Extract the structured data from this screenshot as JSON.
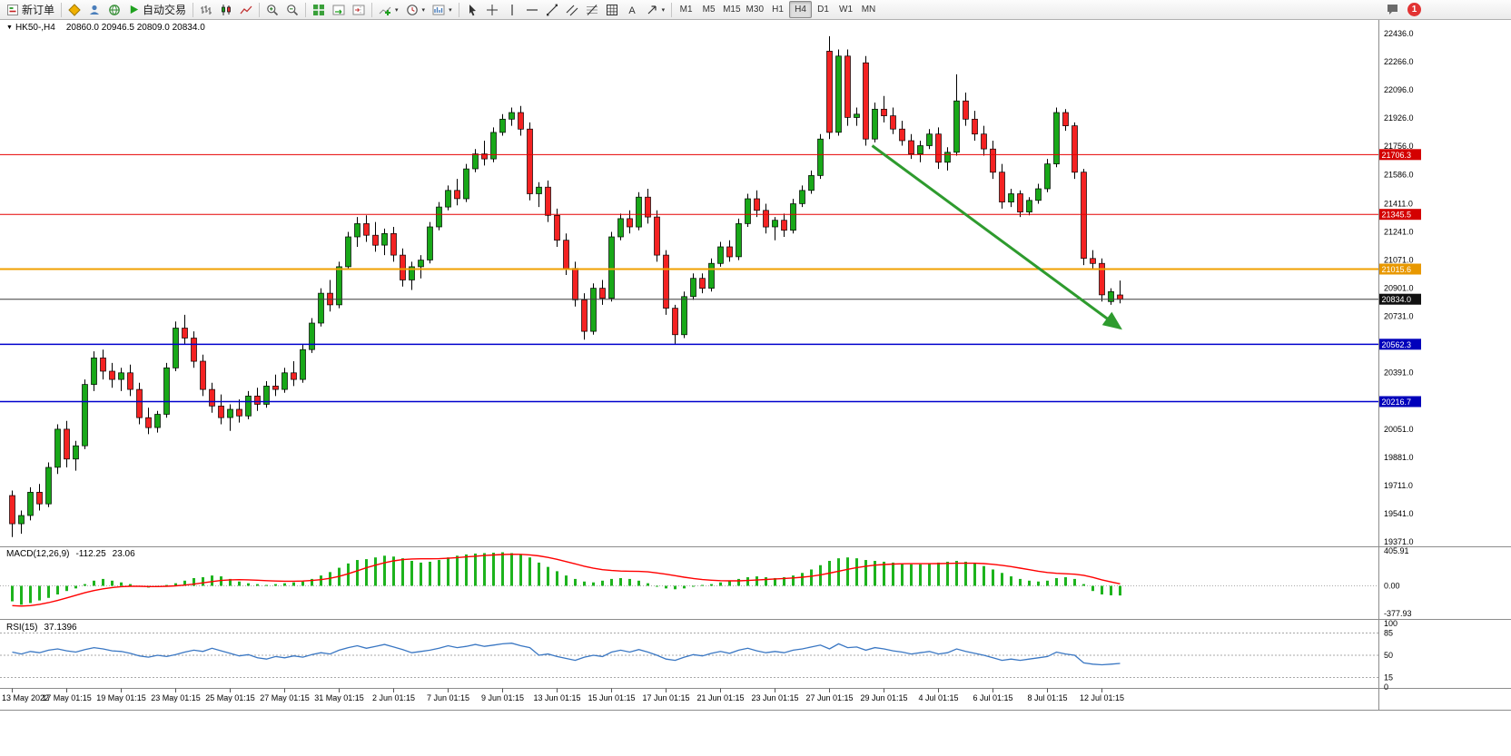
{
  "toolbar": {
    "new_order_label": "新订单",
    "autotrading_label": "自动交易",
    "timeframes": [
      "M1",
      "M5",
      "M15",
      "M30",
      "H1",
      "H4",
      "D1",
      "W1",
      "MN"
    ],
    "active_timeframe": "H4",
    "notification_count": "1"
  },
  "chart": {
    "symbol_period": "HK50-,H4",
    "ohlc_text": "20860.0 20946.5 20809.0 20834.0"
  },
  "chart_data": {
    "type": "candlestick",
    "symbol": "HK50",
    "period": "H4",
    "x_labels": [
      "13 May 2022",
      "17 May 01:15",
      "19 May 01:15",
      "23 May 01:15",
      "25 May 01:15",
      "27 May 01:15",
      "31 May 01:15",
      "2 Jun 01:15",
      "7 Jun 01:15",
      "9 Jun 01:15",
      "13 Jun 01:15",
      "15 Jun 01:15",
      "17 Jun 01:15",
      "21 Jun 01:15",
      "23 Jun 01:15",
      "27 Jun 01:15",
      "29 Jun 01:15",
      "4 Jul 01:15",
      "6 Jul 01:15",
      "8 Jul 01:15",
      "12 Jul 01:15"
    ],
    "y_axis_labels": [
      "22436.0",
      "22266.0",
      "22096.0",
      "21926.0",
      "21756.0",
      "21586.0",
      "21411.0",
      "21241.0",
      "21071.0",
      "20901.0",
      "20731.0",
      "20561.0",
      "20391.0",
      "20221.0",
      "20051.0",
      "19881.0",
      "19711.0",
      "19541.0",
      "19371.0"
    ],
    "candles": [
      [
        19650,
        19680,
        19400,
        19480
      ],
      [
        19480,
        19560,
        19420,
        19530
      ],
      [
        19530,
        19700,
        19500,
        19670
      ],
      [
        19670,
        19720,
        19560,
        19600
      ],
      [
        19600,
        19850,
        19580,
        19820
      ],
      [
        19820,
        20080,
        19780,
        20050
      ],
      [
        20050,
        20100,
        19820,
        19870
      ],
      [
        19870,
        19980,
        19800,
        19950
      ],
      [
        19950,
        20350,
        19930,
        20320
      ],
      [
        20320,
        20520,
        20280,
        20480
      ],
      [
        20480,
        20530,
        20350,
        20400
      ],
      [
        20400,
        20450,
        20300,
        20350
      ],
      [
        20350,
        20420,
        20280,
        20390
      ],
      [
        20390,
        20440,
        20250,
        20290
      ],
      [
        20290,
        20330,
        20080,
        20120
      ],
      [
        20120,
        20180,
        20020,
        20060
      ],
      [
        20060,
        20160,
        20030,
        20140
      ],
      [
        20140,
        20450,
        20120,
        20420
      ],
      [
        20420,
        20700,
        20400,
        20660
      ],
      [
        20660,
        20740,
        20560,
        20600
      ],
      [
        20600,
        20640,
        20420,
        20460
      ],
      [
        20460,
        20500,
        20250,
        20290
      ],
      [
        20290,
        20330,
        20150,
        20190
      ],
      [
        20190,
        20260,
        20080,
        20120
      ],
      [
        20120,
        20200,
        20040,
        20170
      ],
      [
        20170,
        20230,
        20090,
        20130
      ],
      [
        20130,
        20280,
        20110,
        20250
      ],
      [
        20250,
        20300,
        20160,
        20200
      ],
      [
        20200,
        20340,
        20180,
        20310
      ],
      [
        20310,
        20380,
        20250,
        20290
      ],
      [
        20290,
        20420,
        20270,
        20390
      ],
      [
        20390,
        20460,
        20310,
        20350
      ],
      [
        20350,
        20560,
        20330,
        20530
      ],
      [
        20530,
        20720,
        20510,
        20690
      ],
      [
        20690,
        20900,
        20670,
        20870
      ],
      [
        20870,
        20950,
        20760,
        20800
      ],
      [
        20800,
        21060,
        20780,
        21030
      ],
      [
        21030,
        21240,
        21010,
        21210
      ],
      [
        21210,
        21330,
        21150,
        21290
      ],
      [
        21290,
        21340,
        21180,
        21220
      ],
      [
        21220,
        21300,
        21120,
        21160
      ],
      [
        21160,
        21260,
        21100,
        21230
      ],
      [
        21230,
        21270,
        21060,
        21100
      ],
      [
        21100,
        21140,
        20910,
        20950
      ],
      [
        20950,
        21060,
        20890,
        21030
      ],
      [
        21030,
        21100,
        20960,
        21070
      ],
      [
        21070,
        21300,
        21050,
        21270
      ],
      [
        21270,
        21420,
        21250,
        21390
      ],
      [
        21390,
        21520,
        21370,
        21490
      ],
      [
        21490,
        21560,
        21400,
        21440
      ],
      [
        21440,
        21650,
        21420,
        21620
      ],
      [
        21620,
        21740,
        21600,
        21710
      ],
      [
        21710,
        21790,
        21640,
        21680
      ],
      [
        21680,
        21870,
        21660,
        21840
      ],
      [
        21840,
        21950,
        21820,
        21920
      ],
      [
        21920,
        21990,
        21880,
        21960
      ],
      [
        21960,
        22000,
        21820,
        21860
      ],
      [
        21860,
        21900,
        21430,
        21470
      ],
      [
        21470,
        21540,
        21390,
        21510
      ],
      [
        21510,
        21550,
        21300,
        21340
      ],
      [
        21340,
        21380,
        21150,
        21190
      ],
      [
        21190,
        21230,
        20980,
        21020
      ],
      [
        21020,
        21060,
        20790,
        20830
      ],
      [
        20830,
        20870,
        20590,
        20640
      ],
      [
        20640,
        20930,
        20620,
        20900
      ],
      [
        20900,
        20950,
        20800,
        20840
      ],
      [
        20840,
        21240,
        20820,
        21210
      ],
      [
        21210,
        21350,
        21190,
        21320
      ],
      [
        21320,
        21370,
        21230,
        21270
      ],
      [
        21270,
        21480,
        21250,
        21450
      ],
      [
        21450,
        21500,
        21290,
        21330
      ],
      [
        21330,
        21370,
        21060,
        21100
      ],
      [
        21100,
        21130,
        20740,
        20780
      ],
      [
        20780,
        20800,
        20565,
        20620
      ],
      [
        20620,
        20880,
        20600,
        20850
      ],
      [
        20850,
        20990,
        20830,
        20960
      ],
      [
        20960,
        20990,
        20870,
        20900
      ],
      [
        20900,
        21080,
        20880,
        21050
      ],
      [
        21050,
        21180,
        21030,
        21150
      ],
      [
        21150,
        21190,
        21060,
        21090
      ],
      [
        21090,
        21320,
        21070,
        21290
      ],
      [
        21290,
        21470,
        21270,
        21440
      ],
      [
        21440,
        21490,
        21330,
        21370
      ],
      [
        21370,
        21410,
        21230,
        21270
      ],
      [
        21270,
        21330,
        21190,
        21310
      ],
      [
        21310,
        21350,
        21210,
        21250
      ],
      [
        21250,
        21440,
        21230,
        21410
      ],
      [
        21410,
        21520,
        21390,
        21490
      ],
      [
        21490,
        21610,
        21470,
        21580
      ],
      [
        21580,
        21830,
        21560,
        21800
      ],
      [
        22330,
        22420,
        21800,
        21840
      ],
      [
        21840,
        22340,
        21820,
        22300
      ],
      [
        22300,
        22340,
        21880,
        21930
      ],
      [
        21930,
        21990,
        21880,
        21950
      ],
      [
        22260,
        22300,
        21760,
        21800
      ],
      [
        21800,
        22020,
        21780,
        21980
      ],
      [
        21980,
        22060,
        21900,
        21940
      ],
      [
        21940,
        21990,
        21830,
        21860
      ],
      [
        21860,
        21910,
        21760,
        21790
      ],
      [
        21790,
        21830,
        21680,
        21710
      ],
      [
        21710,
        21790,
        21660,
        21760
      ],
      [
        21760,
        21860,
        21740,
        21830
      ],
      [
        21830,
        21870,
        21620,
        21660
      ],
      [
        21660,
        21750,
        21610,
        21720
      ],
      [
        21720,
        22190,
        21700,
        22030
      ],
      [
        22030,
        22080,
        21880,
        21920
      ],
      [
        21920,
        21970,
        21790,
        21830
      ],
      [
        21830,
        21880,
        21700,
        21740
      ],
      [
        21740,
        21790,
        21560,
        21600
      ],
      [
        21600,
        21650,
        21380,
        21420
      ],
      [
        21420,
        21500,
        21390,
        21470
      ],
      [
        21470,
        21490,
        21330,
        21360
      ],
      [
        21360,
        21450,
        21340,
        21430
      ],
      [
        21430,
        21530,
        21410,
        21500
      ],
      [
        21500,
        21680,
        21480,
        21650
      ],
      [
        21650,
        21990,
        21630,
        21960
      ],
      [
        21960,
        21980,
        21850,
        21880
      ],
      [
        21880,
        21900,
        21560,
        21600
      ],
      [
        21600,
        21620,
        21040,
        21080
      ],
      [
        21080,
        21130,
        21010,
        21050
      ],
      [
        21050,
        21080,
        20820,
        20860
      ],
      [
        20820,
        20900,
        20800,
        20880
      ],
      [
        20860,
        20946.5,
        20809.0,
        20834.0
      ]
    ],
    "horizontal_lines": [
      {
        "price": 21706.3,
        "label": "21706.3",
        "color": "#e60000",
        "badge": "#d40000",
        "width": 1
      },
      {
        "price": 21345.5,
        "label": "21345.5",
        "color": "#e60000",
        "badge": "#d40000",
        "width": 1
      },
      {
        "price": 21015.6,
        "label": "21015.6",
        "color": "#f0a000",
        "badge": "#e89800",
        "width": 2
      },
      {
        "price": 20834.0,
        "label": "20834.0",
        "color": "#3c3c3c",
        "badge": "#111111",
        "width": 1
      },
      {
        "price": 20562.3,
        "label": "20562.3",
        "color": "#0000cd",
        "badge": "#0000bb",
        "width": 1.5
      },
      {
        "price": 20216.7,
        "label": "20216.7",
        "color": "#0000cd",
        "badge": "#0000bb",
        "width": 1.5
      }
    ],
    "trend_arrow": {
      "from_index": 94.7,
      "from_price": 21760,
      "to_index": 122,
      "to_price": 20660
    }
  },
  "macd": {
    "label": "MACD(12,26,9)",
    "main_value": "-112.25",
    "signal_value": "23.06",
    "scale_labels": [
      "405.91",
      "0.00",
      "-377.93"
    ],
    "histogram": [
      -180,
      -220,
      -200,
      -170,
      -140,
      -100,
      -60,
      -30,
      20,
      60,
      80,
      60,
      40,
      20,
      0,
      -20,
      -10,
      10,
      30,
      60,
      90,
      100,
      120,
      110,
      80,
      50,
      30,
      20,
      10,
      20,
      30,
      40,
      50,
      80,
      120,
      160,
      210,
      260,
      300,
      310,
      330,
      350,
      340,
      320,
      290,
      270,
      280,
      300,
      330,
      350,
      365,
      375,
      380,
      385,
      390,
      380,
      360,
      330,
      270,
      220,
      170,
      120,
      80,
      50,
      40,
      60,
      80,
      90,
      80,
      60,
      30,
      0,
      -30,
      -40,
      -30,
      -10,
      10,
      20,
      40,
      60,
      80,
      100,
      110,
      100,
      90,
      100,
      120,
      150,
      190,
      240,
      290,
      320,
      330,
      320,
      300,
      290,
      280,
      270,
      260,
      250,
      250,
      260,
      270,
      280,
      290,
      280,
      260,
      230,
      190,
      150,
      110,
      80,
      60,
      50,
      60,
      90,
      100,
      80,
      20,
      -60,
      -100,
      -110,
      -112.25
    ],
    "signal": [
      -230,
      -235,
      -230,
      -215,
      -195,
      -170,
      -140,
      -110,
      -80,
      -55,
      -35,
      -20,
      -10,
      -5,
      -5,
      -8,
      -8,
      -5,
      0,
      8,
      20,
      35,
      50,
      62,
      70,
      72,
      70,
      65,
      60,
      56,
      54,
      54,
      56,
      62,
      72,
      88,
      110,
      140,
      175,
      210,
      240,
      268,
      290,
      305,
      312,
      314,
      314,
      315,
      320,
      328,
      336,
      344,
      352,
      358,
      364,
      367,
      366,
      360,
      348,
      330,
      308,
      282,
      255,
      228,
      205,
      188,
      178,
      172,
      170,
      168,
      162,
      150,
      135,
      118,
      100,
      85,
      73,
      65,
      60,
      58,
      58,
      62,
      68,
      74,
      80,
      85,
      92,
      100,
      112,
      128,
      148,
      170,
      192,
      212,
      228,
      240,
      248,
      253,
      256,
      257,
      257,
      257,
      258,
      260,
      262,
      263,
      262,
      258,
      250,
      238,
      223,
      206,
      188,
      170,
      155,
      145,
      140,
      135,
      122,
      98,
      70,
      45,
      23.06
    ]
  },
  "rsi": {
    "label": "RSI(15)",
    "value": "37.1396",
    "scale_labels": [
      "100",
      "85",
      "50",
      "15",
      "0"
    ],
    "values": [
      55,
      52,
      56,
      54,
      58,
      60,
      57,
      55,
      59,
      62,
      60,
      57,
      56,
      53,
      49,
      47,
      50,
      48,
      51,
      55,
      58,
      56,
      61,
      57,
      53,
      49,
      51,
      46,
      44,
      48,
      46,
      49,
      47,
      51,
      54,
      52,
      58,
      62,
      65,
      61,
      64,
      67,
      63,
      59,
      54,
      56,
      58,
      61,
      65,
      62,
      64,
      67,
      64,
      66,
      68,
      69,
      65,
      62,
      50,
      52,
      48,
      45,
      42,
      47,
      50,
      48,
      55,
      58,
      55,
      59,
      55,
      50,
      44,
      42,
      47,
      51,
      49,
      53,
      56,
      53,
      58,
      61,
      57,
      54,
      56,
      54,
      58,
      60,
      63,
      66,
      60,
      68,
      62,
      63,
      58,
      62,
      60,
      57,
      55,
      52,
      54,
      56,
      52,
      54,
      60,
      56,
      53,
      50,
      46,
      42,
      44,
      42,
      44,
      46,
      48,
      55,
      52,
      50,
      38,
      36,
      35,
      36,
      37.14
    ]
  },
  "colors": {
    "bull": "#18a818",
    "bear": "#f42222",
    "candle_outline": "#000000",
    "macd_hist": "#1db31d",
    "macd_signal": "#ff0000",
    "rsi_line": "#3a77c3",
    "arrow": "#2e9b2e"
  }
}
